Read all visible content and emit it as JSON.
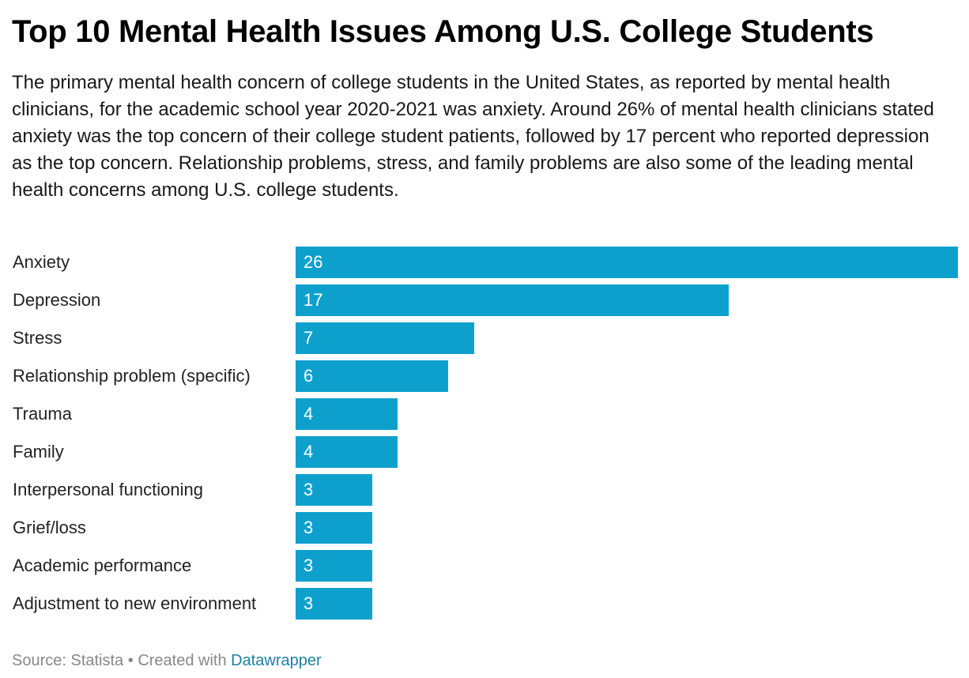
{
  "title": "Top 10 Mental Health Issues Among U.S. College Students",
  "subtitle": "The primary mental health concern of college students in the United States, as reported by mental health clinicians, for the academic school year 2020-2021 was anxiety. Around 26% of mental health clinicians stated anxiety was the top concern of their college student patients, followed by 17 percent who reported depression as the top concern. Relationship problems, stress, and family problems are also some of the leading mental health concerns among U.S. college students.",
  "colors": {
    "bar": "#0ea0cd",
    "link": "#1d81a2",
    "footer_text": "#888888"
  },
  "footer": {
    "source": "Source: Statista",
    "separator": " • ",
    "created_with": "Created with ",
    "link_label": "Datawrapper"
  },
  "chart_data": {
    "type": "bar",
    "orientation": "horizontal",
    "categories": [
      "Anxiety",
      "Depression",
      "Stress",
      "Relationship problem (specific)",
      "Trauma",
      "Family",
      "Interpersonal functioning",
      "Grief/loss",
      "Academic performance",
      "Adjustment to new environment"
    ],
    "values": [
      26,
      17,
      7,
      6,
      4,
      4,
      3,
      3,
      3,
      3
    ],
    "xlim": [
      0,
      26
    ],
    "grid": false,
    "legend": "none",
    "data_labels": "inside bar, left-aligned"
  }
}
